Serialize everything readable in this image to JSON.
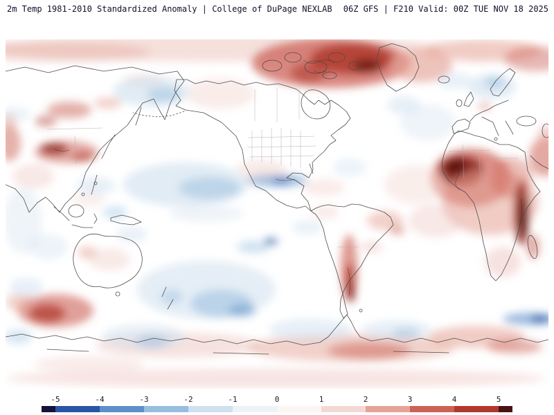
{
  "header": {
    "left_title": "2m Temp 1981-2010 Standardized Anomaly | College of DuPage NEXLAB",
    "right_title": "06Z GFS | F210 Valid: 00Z TUE NOV 18 2025"
  },
  "colorbar": {
    "tick_labels": [
      "-5",
      "-4",
      "-3",
      "-2",
      "-1",
      "0",
      "1",
      "2",
      "3",
      "4",
      "5"
    ],
    "segment_colors": [
      "#141339",
      "#2a55a4",
      "#5d8fc9",
      "#97bede",
      "#cfe0ef",
      "#edf2f7",
      "#fbf6f4",
      "#f3d9d3",
      "#e5a396",
      "#cc6156",
      "#b0392e",
      "#4a1215"
    ],
    "anomaly_negative_color": "#2a55a4",
    "anomaly_positive_color": "#b0392e"
  }
}
